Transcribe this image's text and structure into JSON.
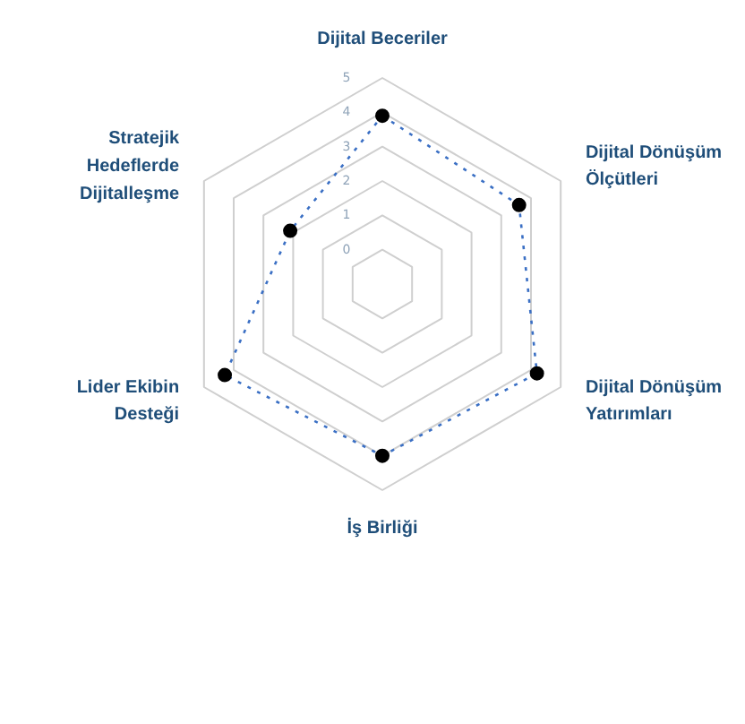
{
  "chart_data": {
    "type": "radar",
    "categories": [
      "Dijital Beceriler",
      "Dijital Dönüşüm\nÖlçütleri",
      "Dijital Dönüşüm\nYatırımları",
      "İş Birliği",
      "Lider Ekibin\nDesteği",
      "Stratejik\nHedeflerde\nDijitalleşme"
    ],
    "series": [
      {
        "color": "#3a6fc4",
        "values": [
          3.9,
          3.6,
          4.2,
          4.0,
          4.3,
          2.1
        ]
      }
    ],
    "ylim": [
      -1,
      5
    ],
    "yticks": [
      0,
      1,
      2,
      3,
      4,
      5
    ],
    "grid": true,
    "marker": "circle",
    "line_style": "dotted"
  }
}
